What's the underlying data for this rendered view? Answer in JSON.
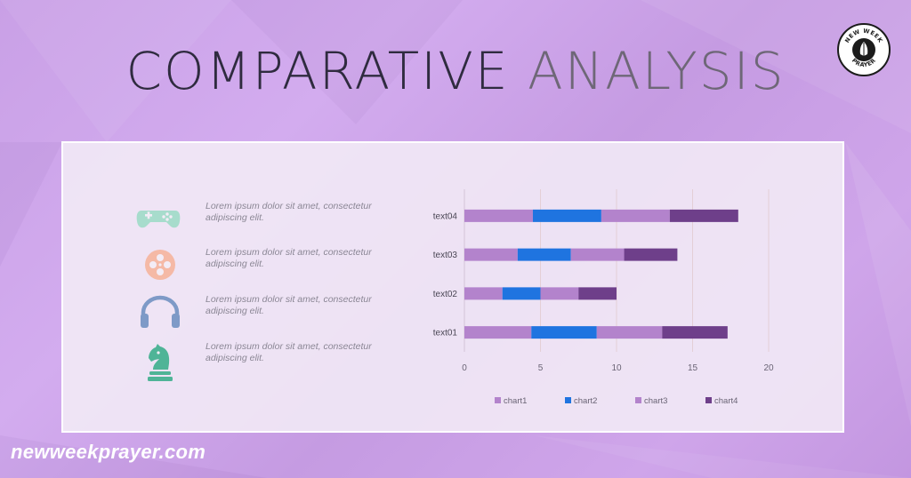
{
  "header": {
    "title_word1": "COMPARATIVE",
    "title_word2": "ANALYSIS"
  },
  "logo": {
    "text": "NEW WEEK PRAYER",
    "icon": "praying-hands-icon"
  },
  "items": [
    {
      "icon": "gamepad-icon",
      "color": "#a7dccc",
      "text": "Lorem ipsum dolor sit amet, consectetur adipiscing elit."
    },
    {
      "icon": "film-reel-icon",
      "color": "#f5b9a6",
      "text": "Lorem ipsum dolor sit amet, consectetur adipiscing elit."
    },
    {
      "icon": "headphones-icon",
      "color": "#7e9ac7",
      "text": "Lorem ipsum dolor sit amet, consectetur adipiscing elit."
    },
    {
      "icon": "chess-knight-icon",
      "color": "#4fb497",
      "text": "Lorem ipsum dolor sit amet, consectetur adipiscing elit."
    }
  ],
  "chart_data": {
    "type": "bar",
    "orientation": "horizontal",
    "stacked": true,
    "categories": [
      "text01",
      "text02",
      "text03",
      "text04"
    ],
    "series": [
      {
        "name": "chart1",
        "color": "#b383cc",
        "values": [
          4.4,
          2.5,
          3.5,
          4.5
        ]
      },
      {
        "name": "chart2",
        "color": "#1f74e0",
        "values": [
          4.3,
          2.5,
          3.5,
          4.5
        ]
      },
      {
        "name": "chart3",
        "color": "#b383cc",
        "values": [
          4.3,
          2.5,
          3.5,
          4.5
        ]
      },
      {
        "name": "chart4",
        "color": "#6e3f8a",
        "values": [
          4.3,
          2.5,
          3.5,
          4.5
        ]
      }
    ],
    "xticks": [
      0,
      5,
      10,
      15,
      20
    ],
    "xlim": [
      0,
      20
    ],
    "grid": true,
    "legend": "bottom"
  },
  "footer": {
    "site": "newweekprayer.com"
  }
}
